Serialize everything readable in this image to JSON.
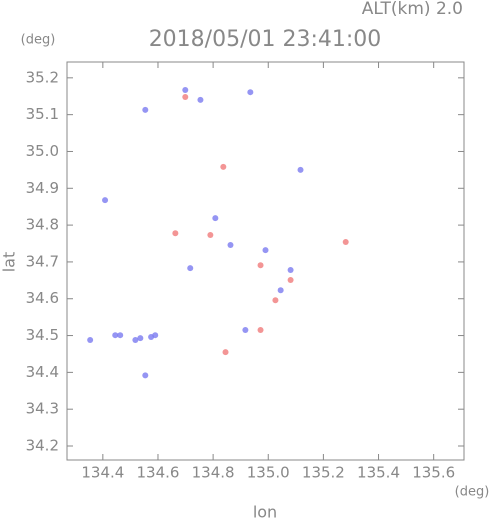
{
  "chart_data": {
    "type": "scatter",
    "header": "ALT(km) 2.0",
    "title": "2018/05/01 23:41:00",
    "y_unit": "(deg)",
    "x_unit": "(deg)",
    "ylabel": "lat",
    "xlabel": "lon",
    "xlim": [
      134.27,
      135.71
    ],
    "ylim": [
      34.162,
      35.243
    ],
    "xticks": [
      134.4,
      134.6,
      134.8,
      {
        "value": 135.0,
        "label": "135.0"
      },
      135.2,
      135.4,
      135.6
    ],
    "yticks": [
      34.2,
      34.3,
      34.4,
      34.5,
      34.6,
      34.7,
      34.8,
      34.9,
      {
        "value": 35.0,
        "label": "35.0"
      },
      35.1,
      35.2
    ],
    "series": [
      {
        "color": "#7b7bf0",
        "x": [
          134.699,
          134.754,
          134.554,
          134.935,
          135.117,
          134.808,
          134.863,
          134.99,
          134.445,
          134.518,
          134.575,
          134.354,
          134.554,
          135.081,
          134.917,
          134.408,
          134.717,
          135.045,
          134.463,
          134.536,
          134.59
        ],
        "values": [
          35.167,
          35.14,
          35.113,
          35.161,
          34.95,
          34.819,
          34.746,
          34.732,
          34.501,
          34.488,
          34.496,
          34.488,
          34.392,
          34.678,
          34.515,
          34.868,
          34.683,
          34.623,
          34.501,
          34.493,
          34.501
        ]
      },
      {
        "color": "#f07b7b",
        "x": [
          134.699,
          134.837,
          134.663,
          134.79,
          134.972,
          135.081,
          134.972,
          134.845,
          135.281,
          135.026
        ],
        "values": [
          35.148,
          34.958,
          34.778,
          34.773,
          34.691,
          34.651,
          34.515,
          34.455,
          34.754,
          34.596
        ]
      }
    ]
  }
}
